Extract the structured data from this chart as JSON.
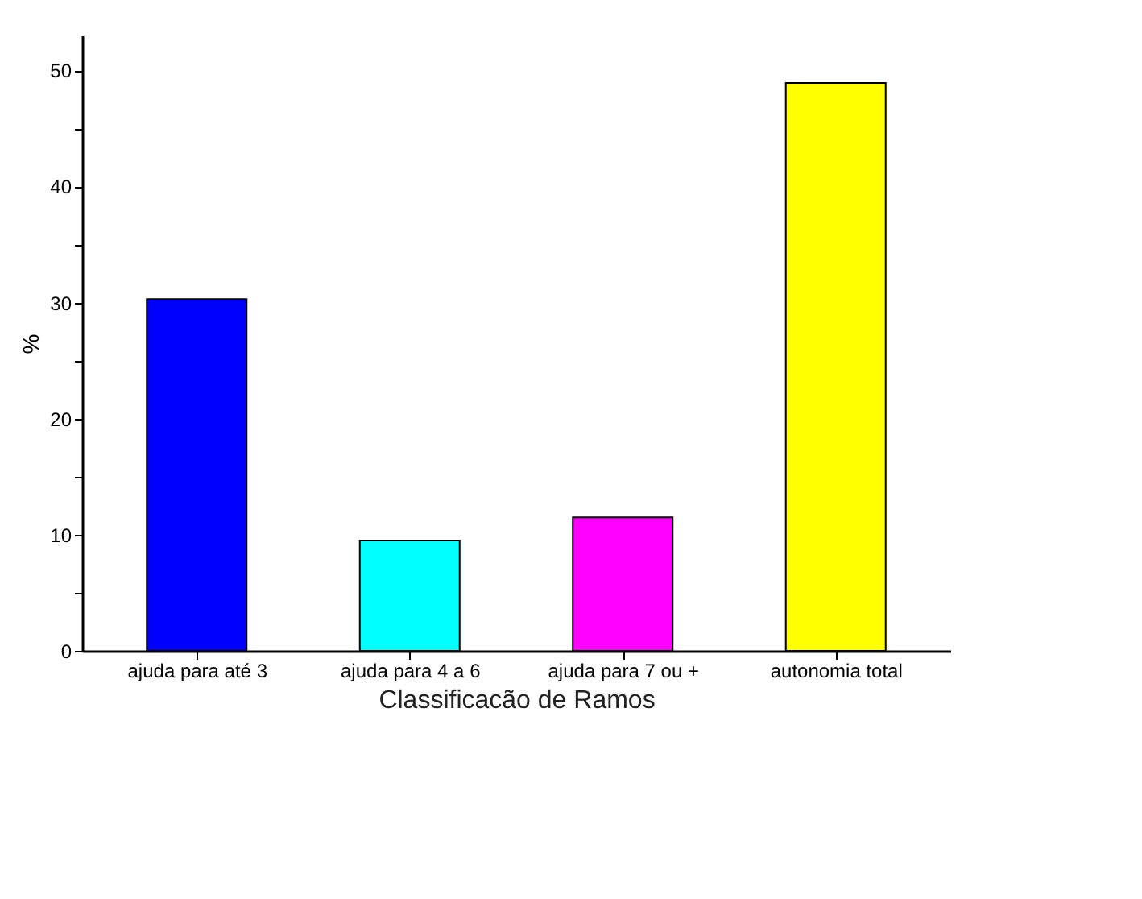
{
  "chart_data": {
    "type": "bar",
    "xlabel": "Classificacão de Ramos",
    "ylabel": "%",
    "categories": [
      "ajuda para até 3",
      "ajuda para 4 a 6",
      "ajuda para 7 ou +",
      "autonomia total"
    ],
    "values": [
      30.3,
      9.5,
      11.5,
      48.9
    ],
    "colors": [
      "#0000ff",
      "#00ffff",
      "#ff00ff",
      "#ffff00"
    ],
    "ylim": [
      0,
      53
    ],
    "yticks": [
      0,
      {
        "value": 5,
        "label": null
      },
      10,
      {
        "value": 15,
        "label": null
      },
      20,
      {
        "value": 25,
        "label": null
      },
      30,
      {
        "value": 35,
        "label": null
      },
      40,
      {
        "value": 45,
        "label": null
      },
      50
    ],
    "grid": false,
    "legend": false
  }
}
